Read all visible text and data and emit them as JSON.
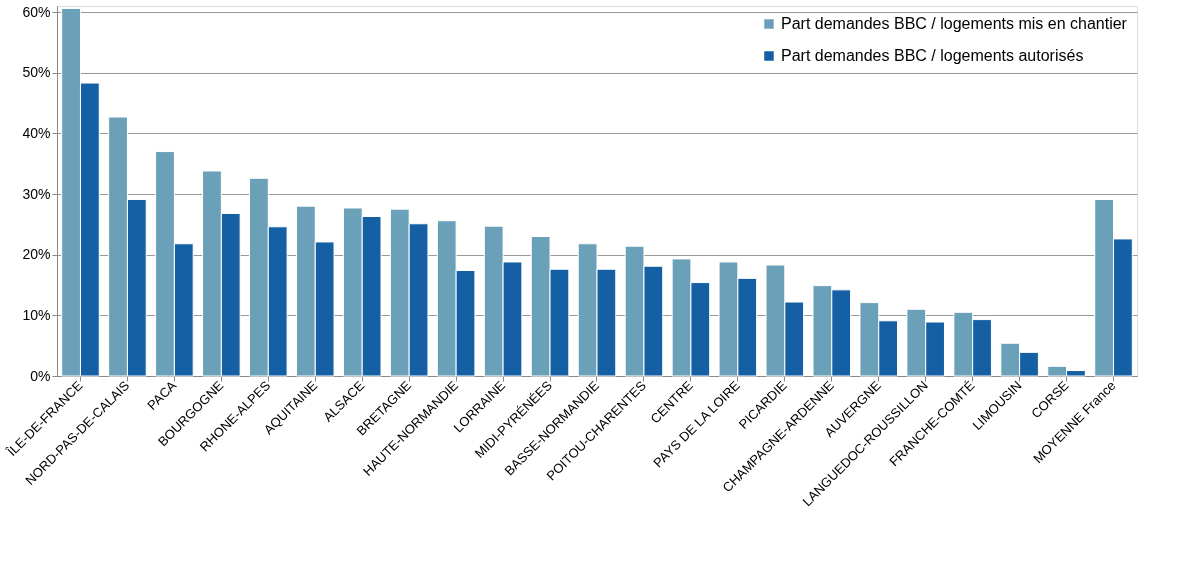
{
  "chart_data": {
    "type": "bar",
    "categories": [
      "ÎLE-DE-FRANCE",
      "NORD-PAS-DE-CALAIS",
      "PACA",
      "BOURGOGNE",
      "RHONE-ALPES",
      "AQUITAINE",
      "ALSACE",
      "BRETAGNE",
      "HAUTE-NORMANDIE",
      "LORRAINE",
      "MIDI-PYRÉNÉES",
      "BASSE-NORMANDIE",
      "POITOU-CHARENTES",
      "CENTRE",
      "PAYS DE LA LOIRE",
      "PICARDIE",
      "CHAMPAGNE-ARDENNE",
      "AUVERGNE",
      "LANGUEDOC-ROUSSILLON",
      "FRANCHE-COMTÉ",
      "LIMOUSIN",
      "CORSE",
      "MOYENNE France"
    ],
    "series": [
      {
        "name": "Part demandes BBC / logements mis en chantier",
        "color": "#6aa0b8",
        "values": [
          60.6,
          42.7,
          37,
          33.8,
          32.6,
          28,
          27.7,
          27.5,
          25.6,
          24.7,
          23,
          21.8,
          21.4,
          19.3,
          18.8,
          18.3,
          14.9,
          12.1,
          11,
          10.5,
          5.4,
          1.6,
          29.1
        ]
      },
      {
        "name": "Part demandes BBC / logements autorisés",
        "color": "#1560a5",
        "values": [
          48.3,
          29.1,
          21.8,
          26.8,
          24.6,
          22.1,
          26.3,
          25.1,
          17.4,
          18.8,
          17.6,
          17.6,
          18.1,
          15.4,
          16.1,
          12.2,
          14.2,
          9.1,
          8.9,
          9.3,
          3.9,
          0.9,
          22.6
        ]
      }
    ],
    "ylim": [
      0,
      61
    ],
    "yticks": [
      {
        "value": 0,
        "label": "0%"
      },
      {
        "value": 10,
        "label": "10%"
      },
      {
        "value": 20,
        "label": "20%"
      },
      {
        "value": 30,
        "label": "30%"
      },
      {
        "value": 40,
        "label": "40%"
      },
      {
        "value": 50,
        "label": "50%"
      },
      {
        "value": 60,
        "label": "60%"
      }
    ],
    "grid": "y",
    "legend": "top right"
  }
}
